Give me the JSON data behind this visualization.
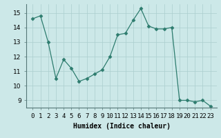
{
  "xlabel": "Humidex (Indice chaleur)",
  "x": [
    0,
    1,
    2,
    3,
    4,
    5,
    6,
    7,
    8,
    9,
    10,
    11,
    12,
    13,
    14,
    15,
    16,
    17,
    18,
    19,
    20,
    21,
    22,
    23
  ],
  "y": [
    14.6,
    14.8,
    13.0,
    10.5,
    11.8,
    11.2,
    10.3,
    10.5,
    10.8,
    11.1,
    12.0,
    13.5,
    13.6,
    14.5,
    15.3,
    14.1,
    13.9,
    13.9,
    14.0,
    9.0,
    9.0,
    8.9,
    9.0,
    8.6
  ],
  "line_color": "#2d7c6e",
  "marker": "D",
  "marker_size": 2.5,
  "ylim": [
    8.5,
    15.6
  ],
  "yticks": [
    9,
    10,
    11,
    12,
    13,
    14,
    15
  ],
  "background_color": "#cce8e8",
  "grid_color": "#aacece",
  "xlabel_fontsize": 7,
  "tick_fontsize": 6.5
}
